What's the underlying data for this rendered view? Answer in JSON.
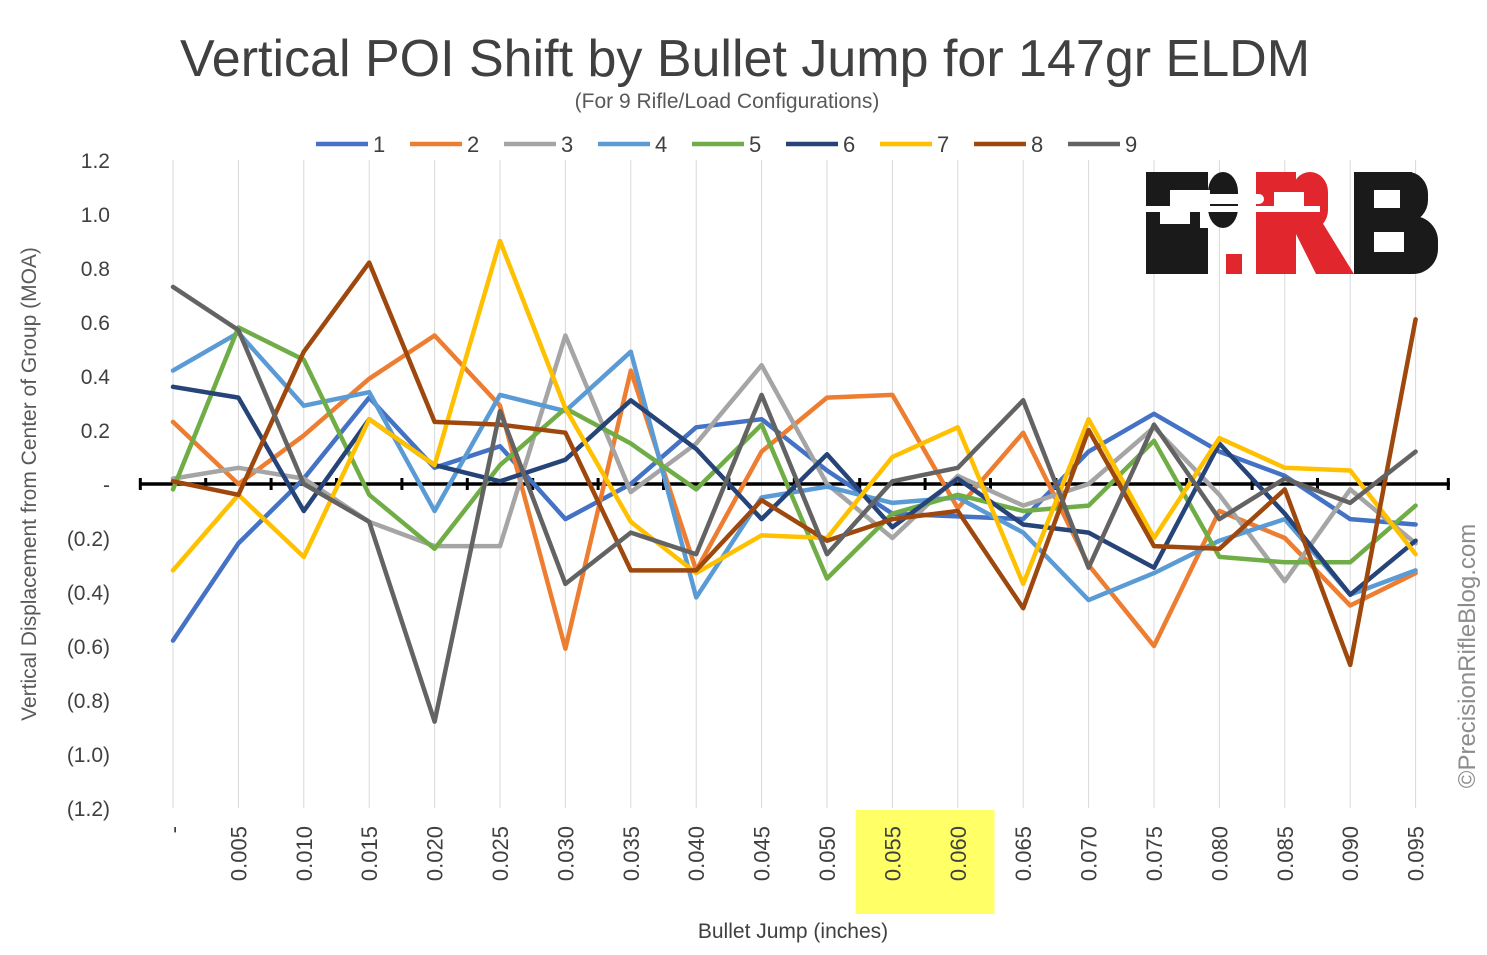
{
  "chart_data": {
    "type": "line",
    "title": "Vertical POI Shift by Bullet Jump for 147gr ELDM",
    "subtitle": "(For 9 Rifle/Load Configurations)",
    "xlabel": "Bullet Jump (inches)",
    "ylabel": "Vertical Displacement from Center of Group (MOA)",
    "categories": [
      "-",
      "0.005",
      "0.010",
      "0.015",
      "0.020",
      "0.025",
      "0.030",
      "0.035",
      "0.040",
      "0.045",
      "0.050",
      "0.055",
      "0.060",
      "0.065",
      "0.070",
      "0.075",
      "0.080",
      "0.085",
      "0.090",
      "0.095"
    ],
    "highlighted_categories": [
      "0.055",
      "0.060"
    ],
    "highlight_color": "#ffff66",
    "ylim": [
      -1.2,
      1.2
    ],
    "ytick_values": [
      1.2,
      1.0,
      0.8,
      0.6,
      0.4,
      0.2,
      0,
      -0.2,
      -0.4,
      -0.6,
      -0.8,
      -1.0,
      -1.2
    ],
    "ytick_labels": [
      "1.2",
      "1.0",
      "0.8",
      "0.6",
      "0.4",
      "0.2",
      "-",
      "(0.2)",
      "(0.4)",
      "(0.6)",
      "(0.8)",
      "(1.0)",
      "(1.2)"
    ],
    "grid": "vertical",
    "legend_position": "top",
    "watermark": "©PrecisionRifleBlog.com",
    "logo": "PRB",
    "series": [
      {
        "name": "1",
        "color": "#4472c4",
        "values": [
          -0.58,
          -0.22,
          0.02,
          0.32,
          0.06,
          0.14,
          -0.13,
          0.0,
          0.21,
          0.24,
          0.05,
          -0.11,
          -0.12,
          -0.13,
          0.12,
          0.26,
          0.12,
          0.03,
          -0.13,
          -0.15
        ]
      },
      {
        "name": "2",
        "color": "#ed7d31",
        "values": [
          0.23,
          0.0,
          0.18,
          0.39,
          0.55,
          0.29,
          -0.61,
          0.42,
          -0.32,
          0.12,
          0.32,
          0.33,
          -0.09,
          0.19,
          -0.3,
          -0.6,
          -0.1,
          -0.2,
          -0.45,
          -0.33
        ]
      },
      {
        "name": "3",
        "color": "#a5a5a5",
        "values": [
          0.02,
          0.06,
          0.02,
          -0.14,
          -0.23,
          -0.23,
          0.55,
          -0.03,
          0.15,
          0.44,
          0.0,
          -0.2,
          0.03,
          -0.08,
          0.0,
          0.21,
          -0.04,
          -0.36,
          -0.02,
          -0.22
        ]
      },
      {
        "name": "4",
        "color": "#5b9bd5",
        "values": [
          0.42,
          0.56,
          0.29,
          0.34,
          -0.1,
          0.33,
          0.27,
          0.49,
          -0.42,
          -0.05,
          -0.01,
          -0.07,
          -0.05,
          -0.18,
          -0.43,
          -0.33,
          -0.21,
          -0.13,
          -0.41,
          -0.32
        ]
      },
      {
        "name": "5",
        "color": "#70ad47",
        "values": [
          -0.02,
          0.58,
          0.46,
          -0.04,
          -0.24,
          0.07,
          0.28,
          0.15,
          -0.02,
          0.22,
          -0.35,
          -0.11,
          -0.04,
          -0.1,
          -0.08,
          0.16,
          -0.27,
          -0.29,
          -0.29,
          -0.08
        ]
      },
      {
        "name": "6",
        "color": "#264478",
        "values": [
          0.36,
          0.32,
          -0.1,
          0.24,
          0.07,
          0.01,
          0.09,
          0.31,
          0.13,
          -0.13,
          0.11,
          -0.16,
          0.02,
          -0.15,
          -0.18,
          -0.31,
          0.15,
          -0.11,
          -0.41,
          -0.21
        ]
      },
      {
        "name": "7",
        "color": "#ffc000",
        "values": [
          -0.32,
          -0.04,
          -0.27,
          0.24,
          0.07,
          0.9,
          0.28,
          -0.14,
          -0.33,
          -0.19,
          -0.2,
          0.1,
          0.21,
          -0.37,
          0.24,
          -0.2,
          0.17,
          0.06,
          0.05,
          -0.26
        ]
      },
      {
        "name": "8",
        "color": "#9e480e",
        "values": [
          0.01,
          -0.04,
          0.49,
          0.82,
          0.23,
          0.22,
          0.19,
          -0.32,
          -0.32,
          -0.06,
          -0.21,
          -0.13,
          -0.1,
          -0.46,
          0.2,
          -0.23,
          -0.24,
          -0.02,
          -0.67,
          0.61
        ]
      },
      {
        "name": "9",
        "color": "#636363",
        "values": [
          0.73,
          0.57,
          0.0,
          -0.14,
          -0.88,
          0.27,
          -0.37,
          -0.18,
          -0.26,
          0.33,
          -0.26,
          0.01,
          0.06,
          0.31,
          -0.31,
          0.22,
          -0.13,
          0.02,
          -0.07,
          0.12
        ]
      }
    ]
  }
}
